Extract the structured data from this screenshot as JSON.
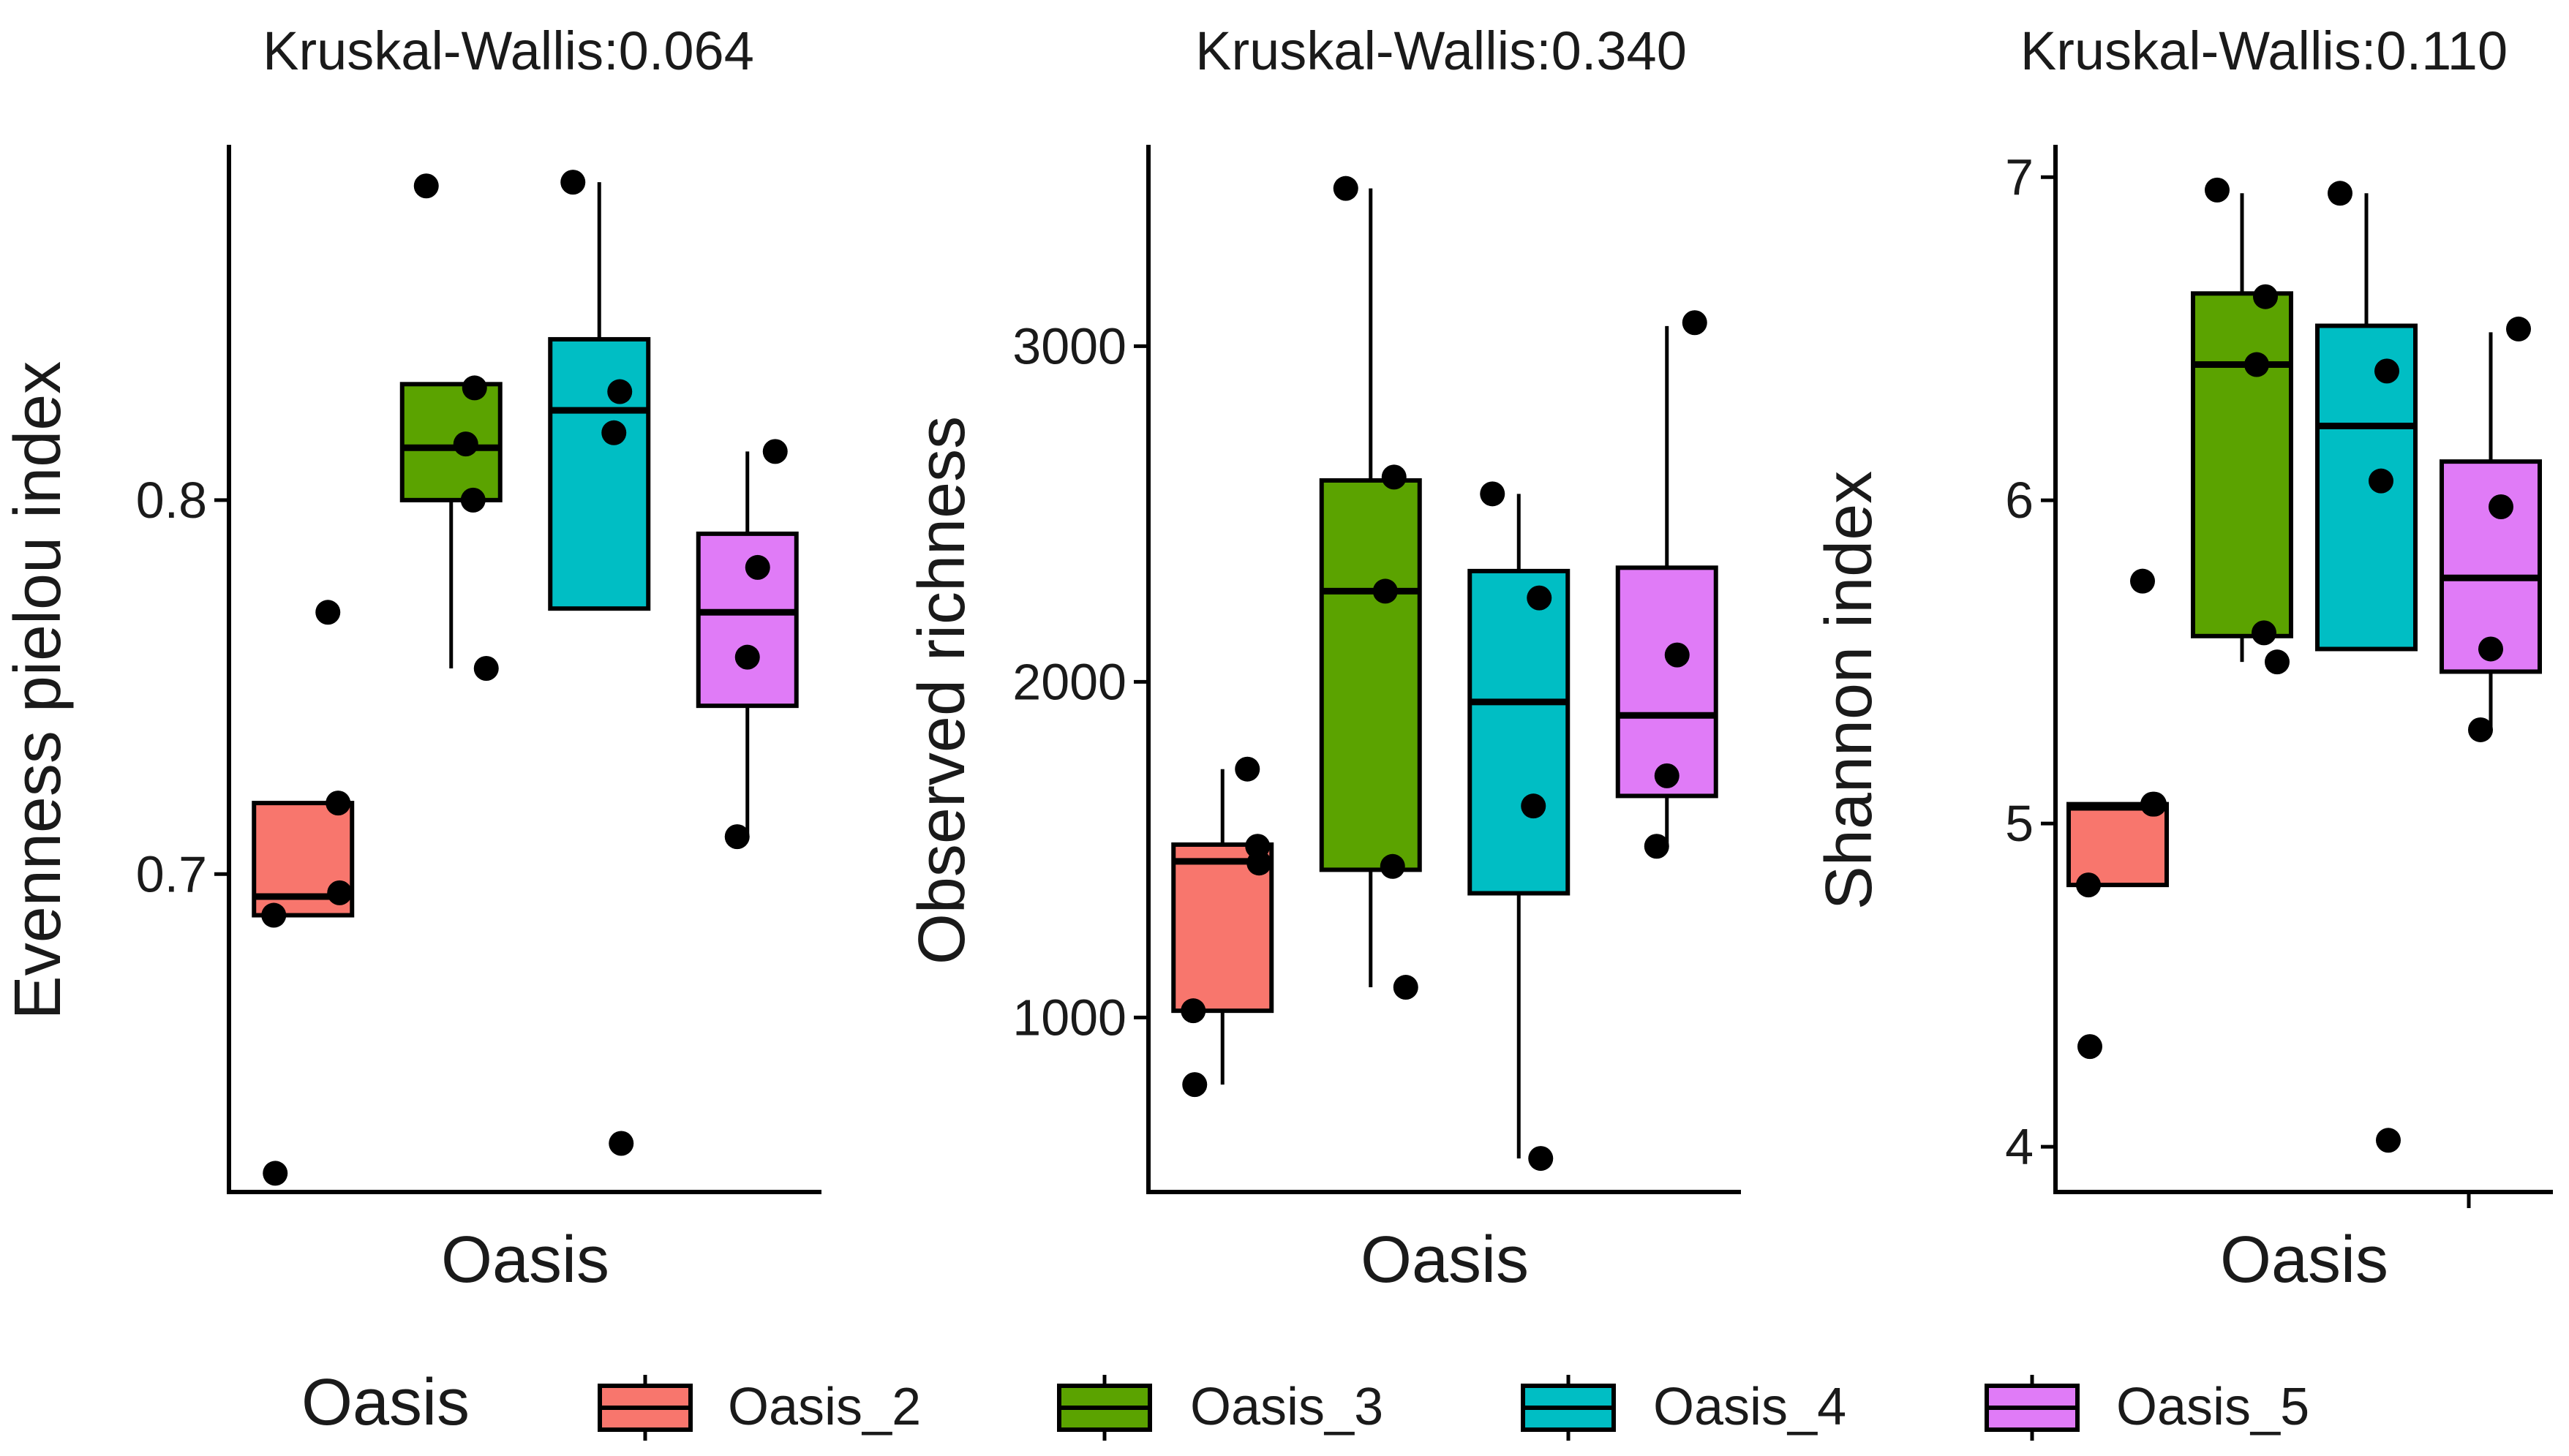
{
  "chart_data": [
    {
      "type": "box",
      "title": "Kruskal-Wallis:0.064",
      "xlabel": "Oasis",
      "ylabel": "Evenness  pielou index",
      "ylim": [
        0.615,
        0.895
      ],
      "yticks": [
        0.7,
        0.8
      ],
      "ytick_labels": [
        "0.7",
        "0.8"
      ],
      "groups": [
        {
          "name": "Oasis_2",
          "q1": 0.689,
          "median": 0.694,
          "q3": 0.719,
          "whisker_low": 0.689,
          "whisker_high": 0.719,
          "points": [
            0.77,
            0.719,
            0.695,
            0.689,
            0.62
          ]
        },
        {
          "name": "Oasis_3",
          "q1": 0.8,
          "median": 0.814,
          "q3": 0.831,
          "whisker_low": 0.755,
          "whisker_high": 0.831,
          "points": [
            0.884,
            0.83,
            0.815,
            0.8,
            0.755
          ]
        },
        {
          "name": "Oasis_4",
          "q1": 0.771,
          "median": 0.824,
          "q3": 0.843,
          "whisker_low": 0.771,
          "whisker_high": 0.885,
          "points": [
            0.885,
            0.829,
            0.818,
            0.628
          ]
        },
        {
          "name": "Oasis_5",
          "q1": 0.745,
          "median": 0.77,
          "q3": 0.791,
          "whisker_low": 0.71,
          "whisker_high": 0.813,
          "points": [
            0.813,
            0.782,
            0.758,
            0.71
          ]
        }
      ]
    },
    {
      "type": "box",
      "title": "Kruskal-Wallis:0.340",
      "xlabel": "Oasis",
      "ylabel": "Observed richness",
      "ylim": [
        480,
        3600
      ],
      "yticks": [
        1000,
        2000,
        3000
      ],
      "ytick_labels": [
        "1000",
        "2000",
        "3000"
      ],
      "groups": [
        {
          "name": "Oasis_2",
          "q1": 1020,
          "median": 1465,
          "q3": 1515,
          "whisker_low": 800,
          "whisker_high": 1740,
          "points": [
            1740,
            1510,
            1460,
            1020,
            800
          ]
        },
        {
          "name": "Oasis_3",
          "q1": 1440,
          "median": 2270,
          "q3": 2600,
          "whisker_low": 1090,
          "whisker_high": 3470,
          "points": [
            3470,
            2610,
            2270,
            1450,
            1090
          ]
        },
        {
          "name": "Oasis_4",
          "q1": 1370,
          "median": 1940,
          "q3": 2330,
          "whisker_low": 580,
          "whisker_high": 2560,
          "points": [
            2560,
            2250,
            1630,
            580
          ]
        },
        {
          "name": "Oasis_5",
          "q1": 1660,
          "median": 1900,
          "q3": 2340,
          "whisker_low": 1510,
          "whisker_high": 3060,
          "points": [
            3070,
            2080,
            1720,
            1510
          ]
        }
      ]
    },
    {
      "type": "box",
      "title": "Kruskal-Wallis:0.110",
      "xlabel": "Oasis",
      "ylabel": "Shannon index",
      "ylim": [
        3.86,
        7.1
      ],
      "yticks": [
        4,
        5,
        6,
        7
      ],
      "ytick_labels": [
        "4",
        "5",
        "6",
        "7"
      ],
      "groups": [
        {
          "name": "Oasis_2",
          "q1": 4.81,
          "median": 5.05,
          "q3": 5.06,
          "whisker_low": 4.81,
          "whisker_high": 5.06,
          "points": [
            5.75,
            5.06,
            5.06,
            4.81,
            4.31
          ]
        },
        {
          "name": "Oasis_3",
          "q1": 5.58,
          "median": 6.42,
          "q3": 6.64,
          "whisker_low": 5.5,
          "whisker_high": 6.95,
          "points": [
            6.96,
            6.63,
            6.42,
            5.59,
            5.5
          ]
        },
        {
          "name": "Oasis_4",
          "q1": 5.54,
          "median": 6.23,
          "q3": 6.54,
          "whisker_low": 5.54,
          "whisker_high": 6.95,
          "points": [
            6.95,
            6.4,
            6.06,
            4.02
          ]
        },
        {
          "name": "Oasis_5",
          "q1": 5.47,
          "median": 5.76,
          "q3": 6.12,
          "whisker_low": 5.29,
          "whisker_high": 6.52,
          "points": [
            6.53,
            5.98,
            5.54,
            5.29
          ]
        }
      ]
    }
  ],
  "legend": {
    "title": "Oasis",
    "entries": [
      {
        "label": "Oasis_2",
        "color": "#F8766D"
      },
      {
        "label": "Oasis_3",
        "color": "#5BA300"
      },
      {
        "label": "Oasis_4",
        "color": "#00BEC4"
      },
      {
        "label": "Oasis_5",
        "color": "#E07BF7"
      }
    ]
  }
}
